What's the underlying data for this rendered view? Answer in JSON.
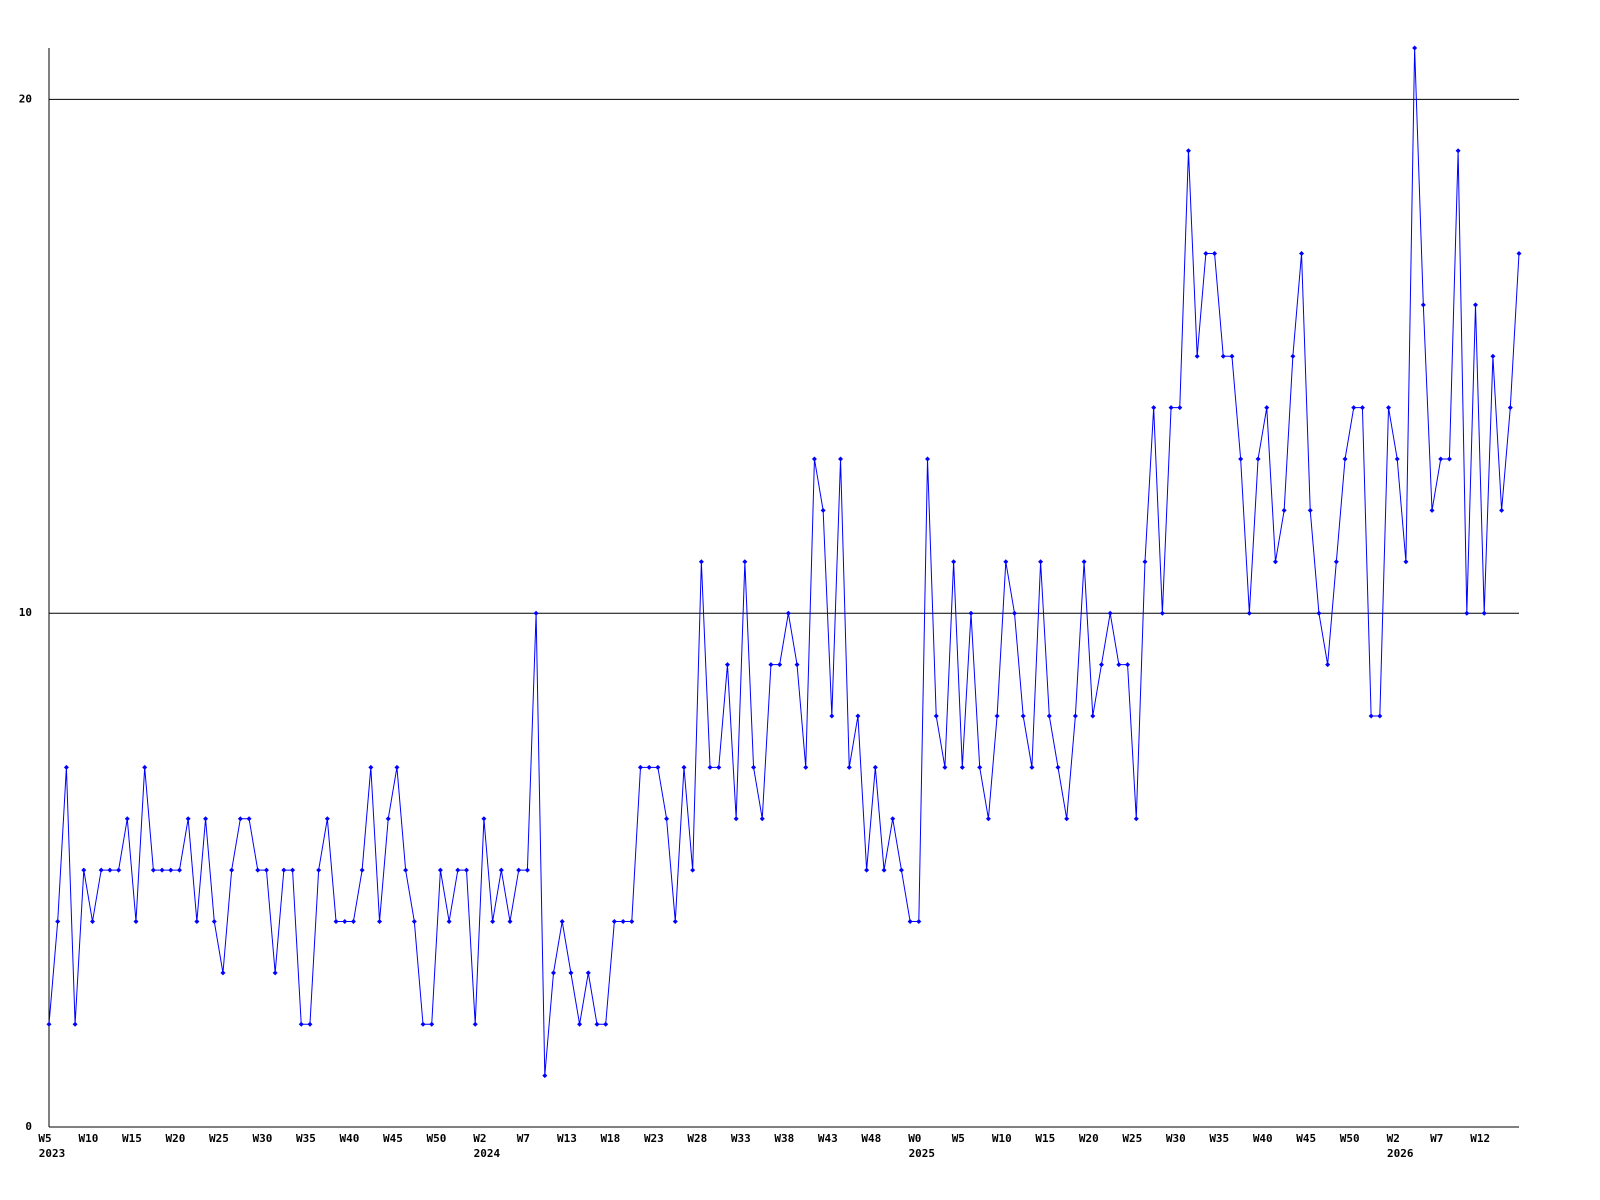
{
  "chart_data": {
    "type": "line",
    "categories": [
      "W5",
      null,
      null,
      null,
      null,
      "W10",
      null,
      null,
      null,
      null,
      "W15",
      null,
      null,
      null,
      null,
      "W20",
      null,
      null,
      null,
      null,
      "W25",
      null,
      null,
      null,
      null,
      "W30",
      null,
      null,
      null,
      null,
      "W35",
      null,
      null,
      null,
      null,
      "W40",
      null,
      null,
      null,
      null,
      "W45",
      null,
      null,
      null,
      null,
      "W50",
      null,
      null,
      null,
      null,
      "W2",
      null,
      null,
      null,
      null,
      "W7",
      null,
      null,
      null,
      null,
      "W13",
      null,
      null,
      null,
      null,
      "W18",
      null,
      null,
      null,
      null,
      "W23",
      null,
      null,
      null,
      null,
      "W28",
      null,
      null,
      null,
      null,
      "W33",
      null,
      null,
      null,
      null,
      "W38",
      null,
      null,
      null,
      null,
      "W43",
      null,
      null,
      null,
      null,
      "W48",
      null,
      null,
      null,
      null,
      "W0",
      null,
      null,
      null,
      null,
      "W5",
      null,
      null,
      null,
      null,
      "W10",
      null,
      null,
      null,
      null,
      "W15",
      null,
      null,
      null,
      null,
      "W20",
      null,
      null,
      null,
      null,
      "W25",
      null,
      null,
      null,
      null,
      "W30",
      null,
      null,
      null,
      null,
      "W35",
      null,
      null,
      null,
      null,
      "W40",
      null,
      null,
      null,
      null,
      "W45",
      null,
      null,
      null,
      null,
      "W50",
      null,
      null,
      null,
      null,
      "W2",
      null,
      null,
      null,
      null,
      "W7",
      null,
      null,
      null,
      null,
      "W12",
      null,
      null,
      null,
      null
    ],
    "year_labels": [
      "2023",
      null,
      null,
      null,
      null,
      null,
      null,
      null,
      null,
      null,
      null,
      null,
      null,
      null,
      null,
      null,
      null,
      null,
      null,
      null,
      null,
      null,
      null,
      null,
      null,
      null,
      null,
      null,
      null,
      null,
      null,
      null,
      null,
      null,
      null,
      null,
      null,
      null,
      null,
      null,
      null,
      null,
      null,
      null,
      null,
      null,
      null,
      null,
      null,
      null,
      "2024",
      null,
      null,
      null,
      null,
      null,
      null,
      null,
      null,
      null,
      null,
      null,
      null,
      null,
      null,
      null,
      null,
      null,
      null,
      null,
      null,
      null,
      null,
      null,
      null,
      null,
      null,
      null,
      null,
      null,
      null,
      null,
      null,
      null,
      null,
      null,
      null,
      null,
      null,
      null,
      null,
      null,
      null,
      null,
      null,
      null,
      null,
      null,
      null,
      null,
      "2025",
      null,
      null,
      null,
      null,
      null,
      null,
      null,
      null,
      null,
      null,
      null,
      null,
      null,
      null,
      null,
      null,
      null,
      null,
      null,
      null,
      null,
      null,
      null,
      null,
      null,
      null,
      null,
      null,
      null,
      null,
      null,
      null,
      null,
      null,
      null,
      null,
      null,
      null,
      null,
      null,
      null,
      null,
      null,
      null,
      null,
      null,
      null,
      null,
      null,
      null,
      null,
      null,
      null,
      null,
      "2026",
      null,
      null,
      null,
      null,
      null,
      null,
      null,
      null,
      null,
      null,
      null,
      null,
      null,
      null
    ],
    "series": [
      {
        "color": "#0000ff",
        "values": [
          2,
          4,
          7,
          2,
          5,
          4,
          5,
          5,
          5,
          6,
          4,
          7,
          5,
          5,
          5,
          5,
          6,
          4,
          6,
          4,
          3,
          5,
          6,
          6,
          5,
          5,
          3,
          5,
          5,
          2,
          2,
          5,
          6,
          4,
          4,
          4,
          5,
          7,
          4,
          6,
          7,
          5,
          4,
          2,
          2,
          5,
          4,
          5,
          5,
          2,
          6,
          4,
          5,
          4,
          5,
          5,
          10,
          1,
          3,
          4,
          3,
          2,
          3,
          2,
          2,
          4,
          4,
          4,
          7,
          7,
          7,
          6,
          4,
          7,
          5,
          11,
          7,
          7,
          9,
          6,
          11,
          7,
          6,
          9,
          9,
          10,
          9,
          7,
          13,
          12,
          8,
          13,
          7,
          8,
          5,
          7,
          5,
          6,
          5,
          4,
          4,
          13,
          8,
          7,
          11,
          7,
          10,
          7,
          6,
          8,
          11,
          10,
          8,
          7,
          11,
          8,
          7,
          6,
          8,
          11,
          8,
          9,
          10,
          9,
          9,
          6,
          11,
          14,
          10,
          14,
          14,
          19,
          15,
          17,
          17,
          15,
          15,
          13,
          10,
          13,
          14,
          11,
          12,
          15,
          17,
          12,
          10,
          9,
          11,
          13,
          14,
          14,
          8,
          8,
          14,
          13,
          11,
          21,
          16,
          12,
          13,
          13,
          19,
          10,
          16,
          10,
          15,
          12,
          14,
          17
        ]
      }
    ],
    "ylim": [
      0,
      21
    ],
    "yticks": [
      0,
      10,
      20
    ],
    "grid": true
  }
}
